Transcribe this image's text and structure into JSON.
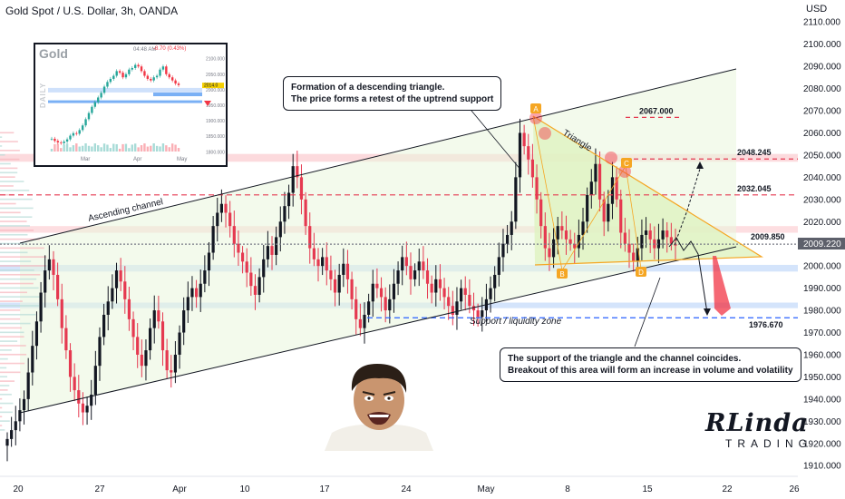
{
  "header": {
    "symbol_title": "Gold Spot / U.S. Dollar, 3h, OANDA",
    "currency": "USD"
  },
  "colors": {
    "bull": "#26a69a",
    "bear": "#f23645",
    "candle_dark": "#131722",
    "candle_red": "#e53950",
    "triangle_fill": "#dff2c0",
    "resistance_zone": "#fcd6d9",
    "support_zone": "#cfe1fb",
    "dashed_red": "#e53950",
    "dashed_blue": "#2962ff",
    "orange": "#f5a623",
    "current_price_bg": "#5d606b"
  },
  "chart_data": {
    "type": "candlestick",
    "instrument": "XAUUSD",
    "timeframe": "3h",
    "y_axis": {
      "ticks": [
        "2110.000",
        "2100.000",
        "2090.000",
        "2080.000",
        "2070.000",
        "2060.000",
        "2050.000",
        "2040.000",
        "2030.000",
        "2020.000",
        "2010.000",
        "2000.000",
        "1990.000",
        "1980.000",
        "1970.000",
        "1960.000",
        "1950.000",
        "1940.000",
        "1930.000",
        "1920.000",
        "1910.000"
      ],
      "range": [
        1906,
        2115
      ]
    },
    "x_axis": {
      "ticks": [
        "20",
        "27",
        "Apr",
        "10",
        "17",
        "24",
        "May",
        "8",
        "15",
        "22",
        "26"
      ]
    },
    "current_price": "2009.220",
    "levels": [
      {
        "label": "2067.000",
        "value": 2067.0
      },
      {
        "label": "2048.245",
        "value": 2048.245
      },
      {
        "label": "2032.045",
        "value": 2032.045
      },
      {
        "label": "2009.850",
        "value": 2009.85
      },
      {
        "label": "1976.670",
        "value": 1976.67
      }
    ],
    "pattern_points": [
      "A",
      "B",
      "C",
      "D"
    ],
    "annotations": {
      "ascending_channel": "Ascending channel",
      "triangle": "Triangle",
      "support_zone": "Support / liquidity zone",
      "callout_top_line1": "Formation of a descending triangle.",
      "callout_top_line2": "The price forms a retest of the uptrend support",
      "callout_bottom_line1": "The support of the triangle and the channel coincides.",
      "callout_bottom_line2": "Breakout of this area will form an increase in volume and volatility"
    },
    "closes": [
      1922,
      1926,
      1930,
      1935,
      1940,
      1952,
      1964,
      1975,
      1988,
      1998,
      2003,
      1996,
      1985,
      1972,
      1962,
      1950,
      1944,
      1938,
      1934,
      1937,
      1942,
      1955,
      1968,
      1978,
      1984,
      1990,
      1998,
      1993,
      1985,
      1976,
      1968,
      1960,
      1955,
      1962,
      1972,
      1980,
      1975,
      1962,
      1953,
      1952,
      1960,
      1970,
      1980,
      1986,
      1990,
      1986,
      1992,
      1998,
      2006,
      2018,
      2024,
      2028,
      2024,
      2018,
      2010,
      2006,
      2002,
      1997,
      1991,
      1987,
      1995,
      2003,
      2009,
      2005,
      2013,
      2020,
      2027,
      2033,
      2045,
      2040,
      2030,
      2018,
      2008,
      2003,
      2000,
      2004,
      1998,
      1994,
      1988,
      1996,
      2001,
      1994,
      1985,
      1976,
      1972,
      1978,
      1984,
      1992,
      1990,
      1986,
      1980,
      1985,
      1992,
      1998,
      2004,
      2000,
      1994,
      1998,
      2002,
      1998,
      1992,
      1988,
      1994,
      1990,
      1986,
      1982,
      1978,
      1984,
      1990,
      1987,
      1982,
      1980,
      1977,
      1980,
      1985,
      1990,
      1996,
      2004,
      2010,
      2014,
      2020,
      2040,
      2060,
      2054,
      2048,
      2040,
      2030,
      2018,
      2008,
      2004,
      2012,
      2018,
      2016,
      2012,
      2010,
      2008,
      2014,
      2020,
      2032,
      2038,
      2046,
      2030,
      2020,
      2028,
      2040,
      2030,
      2015,
      2010,
      2006,
      2002,
      2008,
      2014,
      2016,
      2012,
      2008,
      2012,
      2016,
      2013,
      2010,
      2009.22
    ]
  },
  "inset": {
    "title": "Gold",
    "side_label": "DAILY",
    "time": "04:48 AM",
    "change": "-8.70 (0.43%)",
    "y_ticks": [
      "2100.000",
      "2050.000",
      "2000.000",
      "1950.000",
      "1900.000",
      "1850.000",
      "1800.000"
    ],
    "x_ticks": [
      "Mar",
      "Apr",
      "May"
    ],
    "price_tag": "2014.0"
  },
  "logo": {
    "main": "RLinda",
    "sub": "TRADING"
  }
}
